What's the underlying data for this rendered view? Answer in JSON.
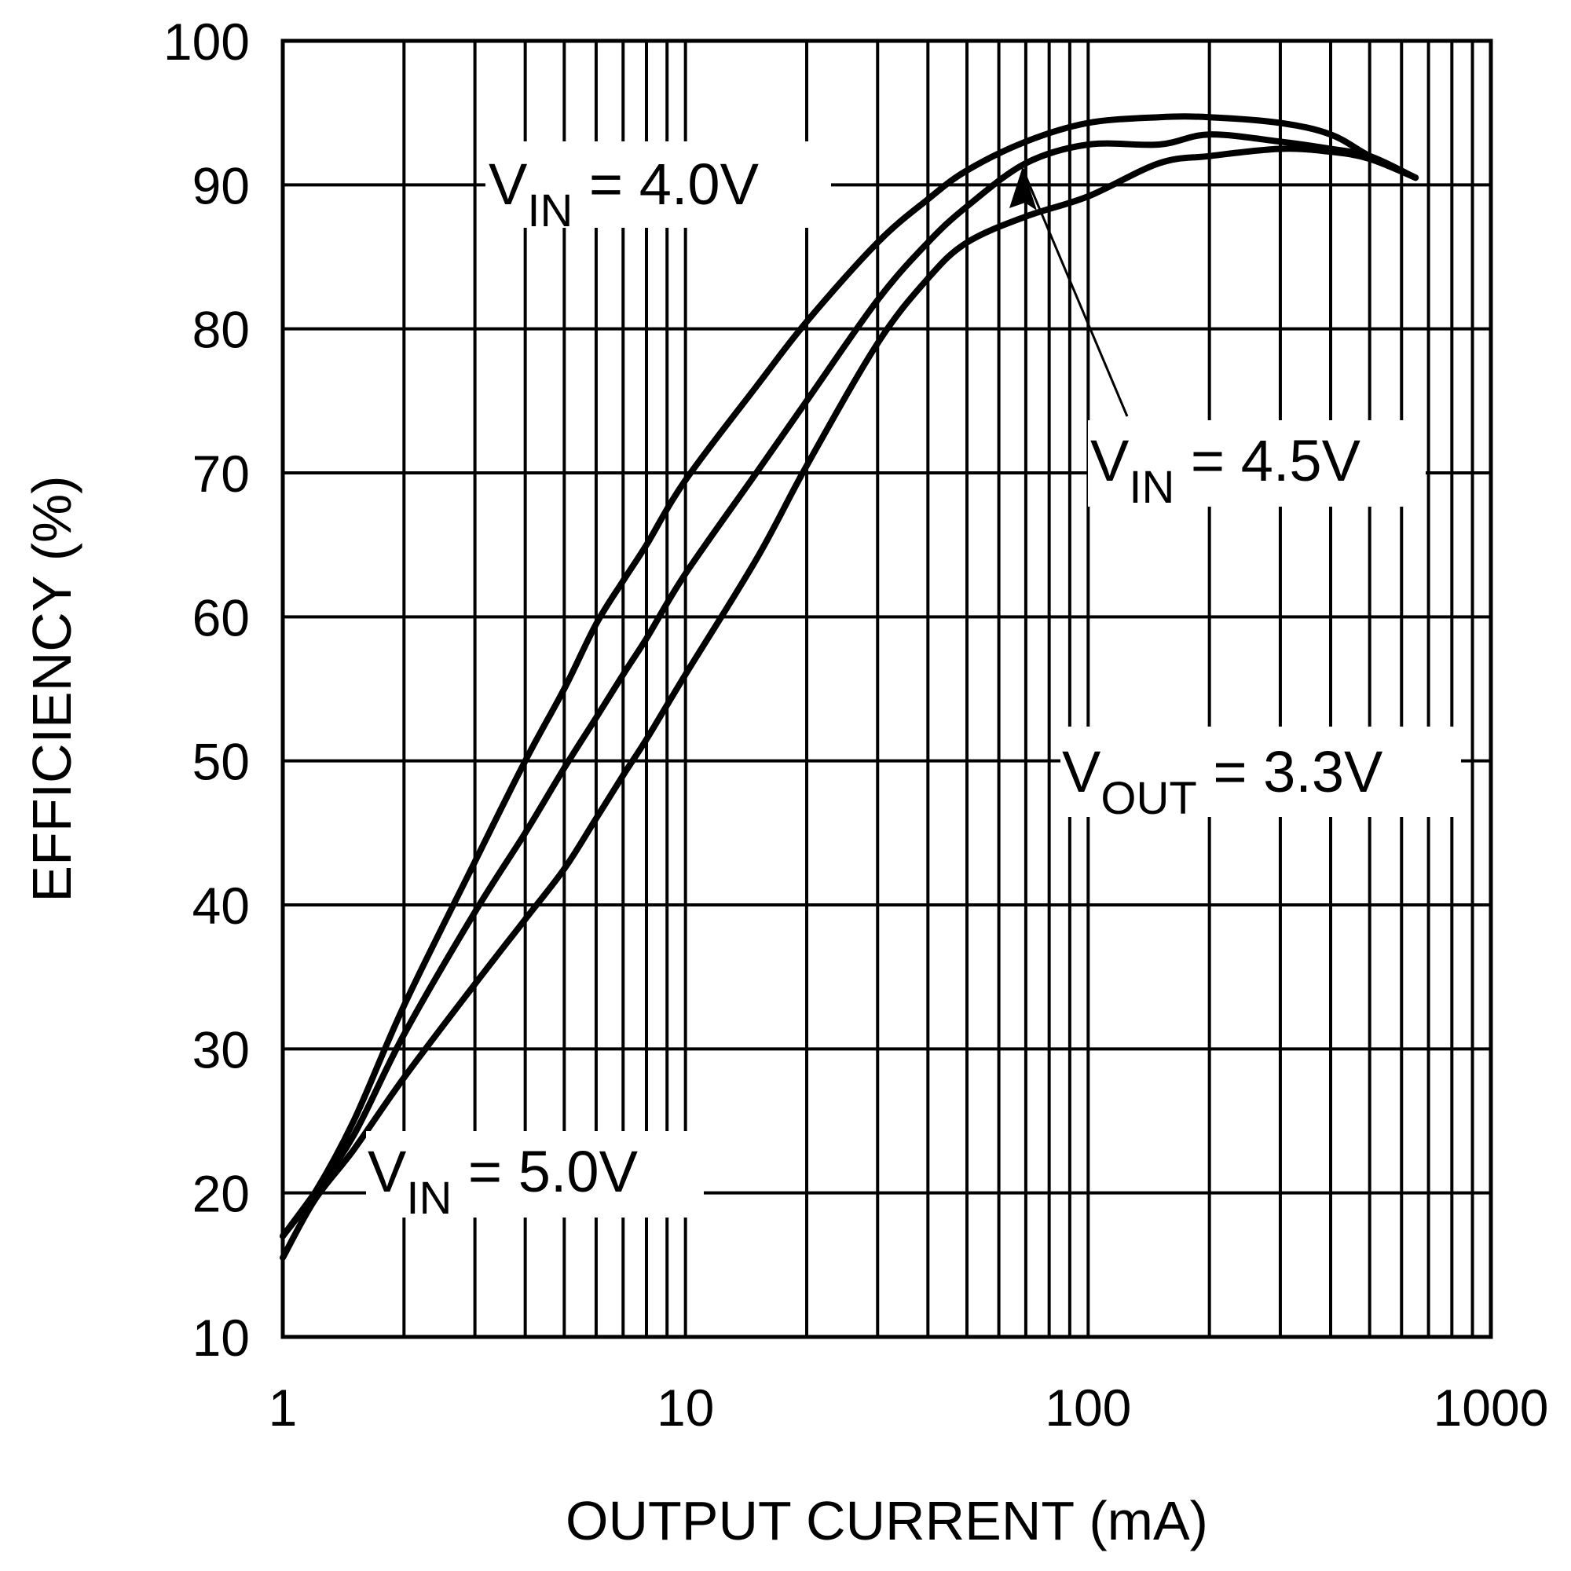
{
  "chart_data": {
    "type": "line",
    "title": "",
    "xlabel": "OUTPUT CURRENT (mA)",
    "ylabel": "EFFICIENCY (%)",
    "xscale": "log",
    "xlim": [
      1,
      1000
    ],
    "ylim": [
      10,
      100
    ],
    "x_ticks": [
      1,
      10,
      100,
      1000
    ],
    "x_tick_labels": [
      "1",
      "10",
      "100",
      "1000"
    ],
    "y_ticks": [
      10,
      20,
      30,
      40,
      50,
      60,
      70,
      80,
      90,
      100
    ],
    "y_tick_labels": [
      "10",
      "20",
      "30",
      "40",
      "50",
      "60",
      "70",
      "80",
      "90",
      "100"
    ],
    "grid": true,
    "series": [
      {
        "name": "VIN = 4.0V",
        "x": [
          1,
          1.2,
          1.5,
          2,
          3,
          4,
          5,
          6,
          7,
          8,
          10,
          15,
          20,
          30,
          40,
          50,
          70,
          100,
          150,
          200,
          300,
          400,
          500,
          650
        ],
        "y": [
          17,
          20,
          25,
          33,
          43,
          50,
          55,
          59.5,
          62.5,
          65,
          69.5,
          76,
          80.5,
          86,
          89,
          91,
          93,
          94.3,
          94.7,
          94.7,
          94.3,
          93.5,
          92,
          90.5
        ]
      },
      {
        "name": "VIN = 4.5V",
        "x": [
          1,
          1.2,
          1.5,
          2,
          3,
          4,
          5,
          6,
          7,
          8,
          10,
          15,
          20,
          30,
          40,
          50,
          70,
          100,
          150,
          200,
          300,
          400,
          500,
          650
        ],
        "y": [
          17,
          20,
          24,
          31,
          39.5,
          45,
          49.5,
          53,
          56,
          58.5,
          63,
          70,
          75,
          82,
          86,
          88.5,
          91.5,
          92.8,
          92.8,
          93.5,
          93,
          92.5,
          92,
          90.5
        ]
      },
      {
        "name": "VIN = 5.0V",
        "x": [
          1,
          1.2,
          1.5,
          2,
          3,
          4,
          5,
          6,
          7,
          8,
          10,
          15,
          20,
          30,
          40,
          50,
          70,
          100,
          150,
          200,
          300,
          400,
          500,
          650
        ],
        "y": [
          15.5,
          19.5,
          23,
          28,
          34.5,
          39,
          42.5,
          46,
          49,
          51.5,
          56,
          64,
          70.5,
          79,
          83.5,
          86,
          87.8,
          89.2,
          91.5,
          92,
          92.5,
          92.3,
          91.8,
          90.5
        ]
      }
    ],
    "annotations": [
      {
        "main": "V",
        "sub": "IN",
        "rest": " = 4.0V"
      },
      {
        "main": "V",
        "sub": "IN",
        "rest": " = 4.5V"
      },
      {
        "main": "V",
        "sub": "OUT",
        "rest": " = 3.3V"
      },
      {
        "main": "V",
        "sub": "IN",
        "rest": " = 5.0V"
      }
    ]
  }
}
